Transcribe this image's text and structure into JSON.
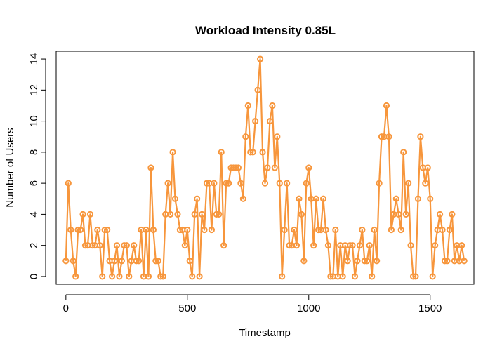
{
  "chart_data": {
    "type": "line",
    "title": "Workload Intensity 0.85L",
    "xlabel": "Timestamp",
    "ylabel": "Number of Users",
    "xlim": [
      -40,
      1680
    ],
    "ylim": [
      -0.5,
      14.5
    ],
    "xticks": [
      0,
      500,
      1000,
      1500
    ],
    "yticks": [
      0,
      2,
      4,
      6,
      8,
      10,
      12,
      14
    ],
    "grid": false,
    "color": "#F7963C",
    "x_step": 10,
    "values": [
      1,
      6,
      3,
      1,
      0,
      3,
      3,
      4,
      2,
      2,
      4,
      2,
      2,
      3,
      2,
      0,
      3,
      3,
      1,
      0,
      1,
      2,
      0,
      1,
      2,
      2,
      0,
      1,
      2,
      1,
      1,
      3,
      0,
      3,
      0,
      7,
      3,
      1,
      1,
      0,
      0,
      4,
      6,
      4,
      8,
      5,
      4,
      3,
      3,
      2,
      3,
      1,
      0,
      4,
      5,
      0,
      4,
      3,
      6,
      6,
      3,
      6,
      4,
      4,
      8,
      2,
      6,
      6,
      7,
      7,
      7,
      7,
      6,
      5,
      9,
      11,
      8,
      8,
      10,
      12,
      14,
      8,
      6,
      7,
      10,
      11,
      7,
      9,
      6,
      0,
      3,
      6,
      2,
      2,
      3,
      2,
      5,
      4,
      1,
      6,
      7,
      5,
      2,
      5,
      3,
      3,
      5,
      3,
      2,
      0,
      0,
      3,
      0,
      2,
      0,
      2,
      1,
      2,
      2,
      0,
      1,
      2,
      3,
      1,
      1,
      2,
      0,
      3,
      1,
      6,
      9,
      9,
      11,
      9,
      3,
      4,
      5,
      4,
      3,
      8,
      4,
      6,
      2,
      0,
      0,
      5,
      9,
      7,
      6,
      7,
      5,
      0,
      2,
      3,
      4,
      3,
      1,
      1,
      3,
      4,
      1,
      2,
      1,
      2,
      1
    ]
  }
}
